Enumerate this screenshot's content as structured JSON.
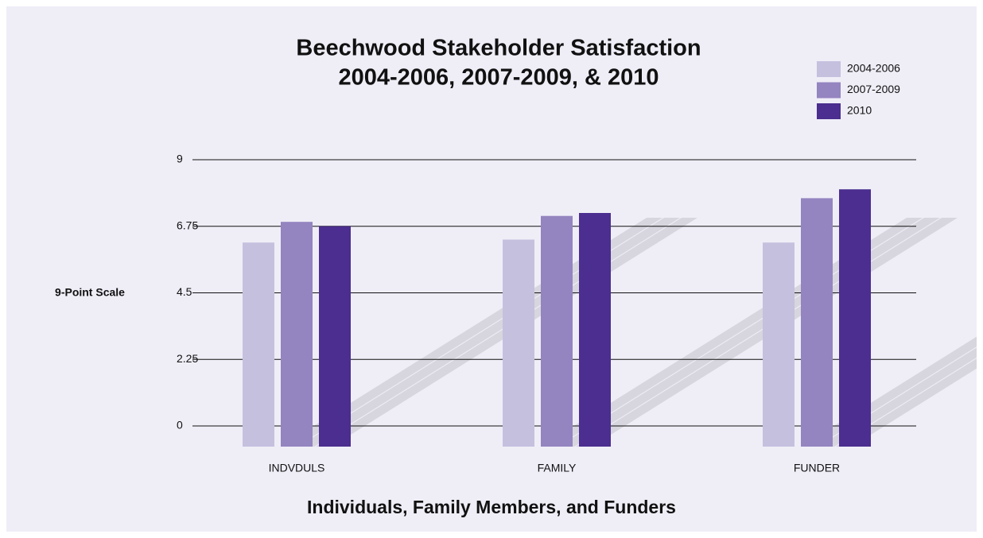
{
  "chart_data": {
    "type": "bar",
    "title": "Beechwood Stakeholder Satisfaction",
    "subtitle": "2004-2006, 2007-2009, & 2010",
    "y_label": "9-Point Scale",
    "x_label": "Individuals, Family Members, and Funders",
    "categories": [
      "INDVDULS",
      "FAMILY",
      "FUNDER"
    ],
    "series": [
      {
        "name": "2004-2006",
        "color": "#c6c0df",
        "values": [
          6.2,
          6.3,
          6.2
        ]
      },
      {
        "name": "2007-2009",
        "color": "#9484c0",
        "values": [
          6.9,
          7.1,
          7.7
        ]
      },
      {
        "name": "2010",
        "color": "#4b2e8f",
        "values": [
          6.75,
          7.2,
          8.0
        ]
      }
    ],
    "ylim": [
      0,
      9
    ],
    "yticks": [
      0,
      2.25,
      4.5,
      6.75,
      9
    ],
    "grid": true,
    "legend": "top-right"
  }
}
